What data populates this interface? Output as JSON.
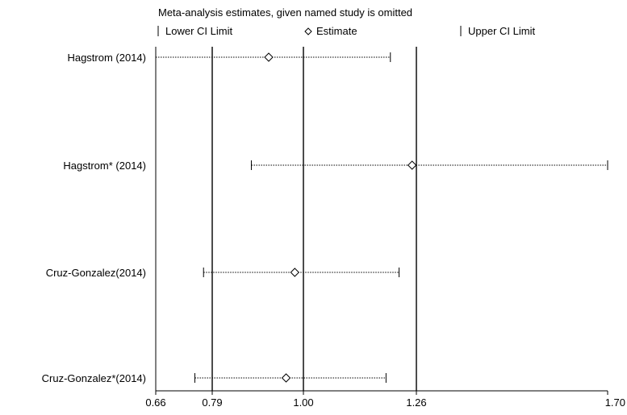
{
  "chart_data": {
    "type": "scatter",
    "title": "Meta-analysis estimates, given named study is omitted",
    "legend": {
      "placement": "top",
      "items": [
        {
          "symbol": "tick",
          "label": "Lower CI Limit"
        },
        {
          "symbol": "diamond",
          "label": "Estimate"
        },
        {
          "symbol": "tick",
          "label": "Upper CI Limit"
        }
      ]
    },
    "x_ticks": [
      {
        "value": 0.66,
        "label": "0.66"
      },
      {
        "value": 0.79,
        "label": "0.79"
      },
      {
        "value": 1.0,
        "label": "1.00"
      },
      {
        "value": 1.26,
        "label": "1.26"
      },
      {
        "value": 1.7,
        "label": "1.70"
      }
    ],
    "xlim": [
      0.66,
      1.7
    ],
    "reference_lines": [
      0.79,
      1.0,
      1.26
    ],
    "studies": [
      {
        "label": "Hagstrom (2014)",
        "lower": 0.66,
        "estimate": 0.92,
        "upper": 1.2
      },
      {
        "label": "Hagstrom* (2014)",
        "lower": 0.88,
        "estimate": 1.25,
        "upper": 1.7
      },
      {
        "label": "Cruz-Gonzalez(2014)",
        "lower": 0.77,
        "estimate": 0.98,
        "upper": 1.22
      },
      {
        "label": "Cruz-Gonzalez*(2014)",
        "lower": 0.75,
        "estimate": 0.96,
        "upper": 1.19
      }
    ],
    "colors": {
      "ink": "#000000",
      "background": "#ffffff"
    }
  }
}
